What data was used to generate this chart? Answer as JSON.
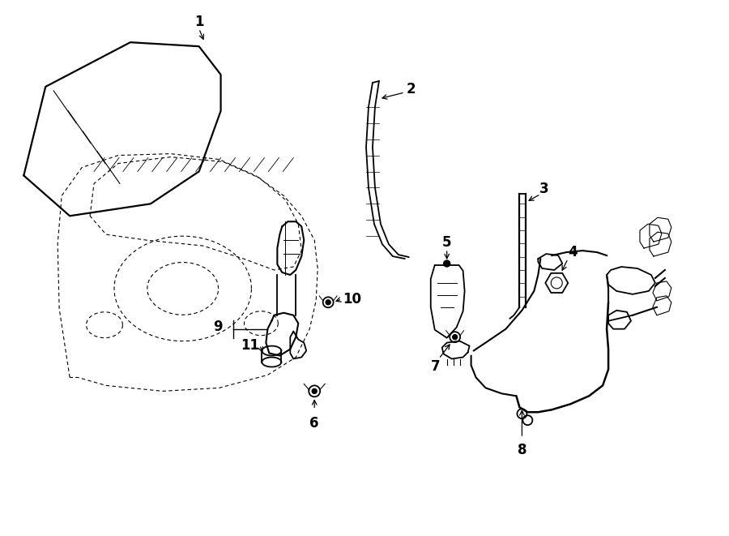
{
  "bg_color": "#ffffff",
  "line_color": "#000000",
  "fig_width": 9.0,
  "fig_height": 6.61,
  "dpi": 100,
  "lw_main": 1.3,
  "lw_thin": 0.8,
  "label_fontsize": 12
}
